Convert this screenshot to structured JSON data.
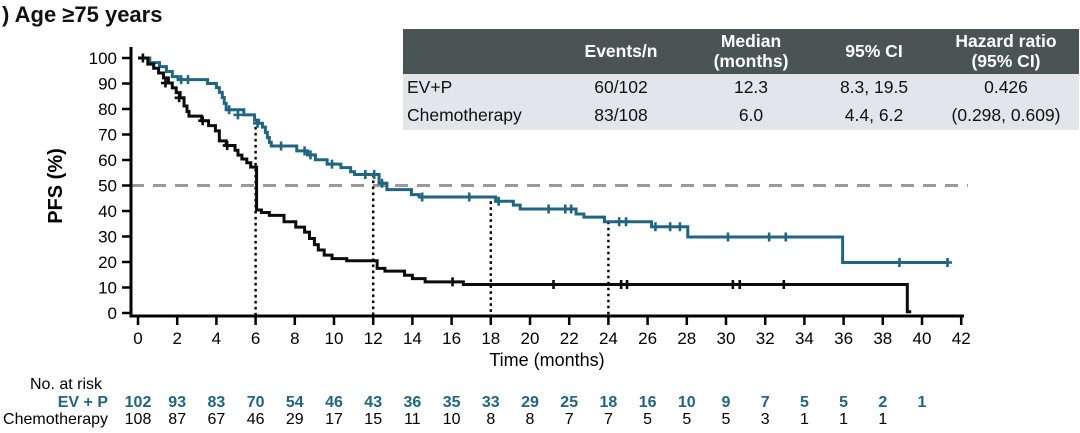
{
  "title": ") Age ≥75 years",
  "colors": {
    "evp": "#206582",
    "chemo": "#0b0b0b",
    "median_line": "#9a9a9a",
    "table_header_bg": "#4b5454",
    "table_row_bg": "#e3e5eb",
    "table_header_text": "#ffffff"
  },
  "summary_table": {
    "headers": [
      "",
      "Events/n",
      "Median\n(months)",
      "95% CI",
      "Hazard ratio\n(95% CI)"
    ],
    "rows": [
      {
        "label": "EV+P",
        "events_n": "60/102",
        "median": "12.3",
        "ci": "8.3, 19.5",
        "hr": "0.426"
      },
      {
        "label": "Chemotherapy",
        "events_n": "83/108",
        "median": "6.0",
        "ci": "4.4, 6.2",
        "hr": "(0.298, 0.609)"
      }
    ]
  },
  "chart_data": {
    "type": "line",
    "subtype": "kaplan-meier-step",
    "title": "",
    "xlabel": "Time (months)",
    "ylabel": "PFS (%)",
    "xlim": [
      0,
      42
    ],
    "ylim": [
      0,
      100
    ],
    "x_ticks": [
      0,
      2,
      4,
      6,
      8,
      10,
      12,
      14,
      16,
      18,
      20,
      22,
      24,
      26,
      28,
      30,
      32,
      34,
      36,
      38,
      40,
      42
    ],
    "y_ticks": [
      0,
      10,
      20,
      30,
      40,
      50,
      60,
      70,
      80,
      90,
      100
    ],
    "grid": false,
    "legend_position": "none",
    "reference_line_y": 50,
    "dotted_verticals": [
      {
        "x": 6,
        "top": 73
      },
      {
        "x": 12,
        "top": 54.3
      },
      {
        "x": 18,
        "top": 43.8
      },
      {
        "x": 24,
        "top": 35.8
      }
    ],
    "series": [
      {
        "name": "EV+P",
        "key": "evp",
        "end": 41.3,
        "steps": [
          [
            0,
            100
          ],
          [
            0.6,
            98.2
          ],
          [
            1.1,
            96.6
          ],
          [
            1.45,
            94.7
          ],
          [
            1.75,
            92.7
          ],
          [
            2.05,
            91.5
          ],
          [
            3.55,
            90.0
          ],
          [
            4.0,
            88.4
          ],
          [
            4.15,
            86.5
          ],
          [
            4.3,
            84.5
          ],
          [
            4.4,
            82.2
          ],
          [
            4.5,
            79.7
          ],
          [
            5.4,
            77.7
          ],
          [
            5.95,
            75.6
          ],
          [
            6.15,
            74.4
          ],
          [
            6.35,
            72.9
          ],
          [
            6.5,
            70.8
          ],
          [
            6.6,
            68.8
          ],
          [
            6.7,
            66.9
          ],
          [
            6.8,
            65.5
          ],
          [
            8.1,
            63.6
          ],
          [
            8.65,
            62.0
          ],
          [
            9.05,
            60.1
          ],
          [
            9.65,
            58.4
          ],
          [
            10.35,
            57.0
          ],
          [
            10.85,
            55.4
          ],
          [
            11.05,
            54.3
          ],
          [
            12.3,
            50.9
          ],
          [
            12.7,
            48.4
          ],
          [
            13.95,
            46.4
          ],
          [
            14.35,
            45.5
          ],
          [
            18.25,
            43.8
          ],
          [
            19.15,
            42.3
          ],
          [
            19.5,
            40.8
          ],
          [
            22.35,
            38.8
          ],
          [
            22.75,
            37.6
          ],
          [
            23.8,
            35.8
          ],
          [
            26.2,
            33.8
          ],
          [
            28.05,
            29.8
          ],
          [
            35.95,
            19.8
          ]
        ],
        "censors": [
          [
            2.2,
            91.5
          ],
          [
            2.55,
            91.5
          ],
          [
            4.65,
            79.7
          ],
          [
            5.1,
            77.7
          ],
          [
            6.1,
            74.4
          ],
          [
            7.3,
            65.5
          ],
          [
            8.5,
            63.6
          ],
          [
            8.8,
            62.0
          ],
          [
            9.9,
            58.4
          ],
          [
            11.6,
            54.3
          ],
          [
            12.05,
            54.3
          ],
          [
            12.45,
            50.9
          ],
          [
            14.5,
            45.5
          ],
          [
            16.9,
            45.5
          ],
          [
            18.4,
            43.8
          ],
          [
            20.95,
            40.8
          ],
          [
            21.8,
            40.8
          ],
          [
            22.1,
            40.8
          ],
          [
            24.55,
            35.8
          ],
          [
            24.9,
            35.8
          ],
          [
            26.4,
            33.8
          ],
          [
            27.15,
            33.8
          ],
          [
            27.65,
            33.8
          ],
          [
            30.1,
            29.8
          ],
          [
            32.2,
            29.8
          ],
          [
            33.05,
            29.8
          ],
          [
            38.85,
            19.8
          ],
          [
            41.3,
            19.8
          ]
        ]
      },
      {
        "name": "Chemotherapy",
        "key": "chemo",
        "end": 39.45,
        "steps": [
          [
            0,
            100
          ],
          [
            0.5,
            97.6
          ],
          [
            0.8,
            96.0
          ],
          [
            1.05,
            94.1
          ],
          [
            1.3,
            92.2
          ],
          [
            1.55,
            90.2
          ],
          [
            1.75,
            88.3
          ],
          [
            1.95,
            86.4
          ],
          [
            2.15,
            84.4
          ],
          [
            2.35,
            81.2
          ],
          [
            2.5,
            79.0
          ],
          [
            2.6,
            77.2
          ],
          [
            3.25,
            75.4
          ],
          [
            3.6,
            73.5
          ],
          [
            3.95,
            71.4
          ],
          [
            4.15,
            67.5
          ],
          [
            4.5,
            65.7
          ],
          [
            4.95,
            63.8
          ],
          [
            5.1,
            61.9
          ],
          [
            5.3,
            60.4
          ],
          [
            5.55,
            58.9
          ],
          [
            5.75,
            57.2
          ],
          [
            6.05,
            40.4
          ],
          [
            6.3,
            39.4
          ],
          [
            6.7,
            38.3
          ],
          [
            7.45,
            35.8
          ],
          [
            8.05,
            33.7
          ],
          [
            8.5,
            31.7
          ],
          [
            8.75,
            29.2
          ],
          [
            9.0,
            26.8
          ],
          [
            9.2,
            24.7
          ],
          [
            9.5,
            22.7
          ],
          [
            9.9,
            21.3
          ],
          [
            10.65,
            20.5
          ],
          [
            12.2,
            17.5
          ],
          [
            12.6,
            16.4
          ],
          [
            13.6,
            14.8
          ],
          [
            14.0,
            13.5
          ],
          [
            14.65,
            12.2
          ],
          [
            16.6,
            11.2
          ],
          [
            39.25,
            0.5
          ]
        ],
        "censors": [
          [
            0.25,
            100
          ],
          [
            1.4,
            90.2
          ],
          [
            2.1,
            84.4
          ],
          [
            3.3,
            75.4
          ],
          [
            4.55,
            65.7
          ],
          [
            16.05,
            12.2
          ],
          [
            21.2,
            11.2
          ],
          [
            24.65,
            11.2
          ],
          [
            24.95,
            11.2
          ],
          [
            30.35,
            11.2
          ],
          [
            30.7,
            11.2
          ],
          [
            32.95,
            11.2
          ]
        ]
      }
    ]
  },
  "at_risk": {
    "label": "No. at risk",
    "interval_months": 2,
    "groups": [
      {
        "name": "EV + P",
        "key": "evp",
        "values": [
          102,
          93,
          83,
          70,
          54,
          46,
          43,
          36,
          35,
          33,
          29,
          25,
          18,
          16,
          10,
          9,
          7,
          5,
          5,
          2,
          1
        ]
      },
      {
        "name": "Chemotherapy",
        "key": "chemo",
        "values": [
          108,
          87,
          67,
          46,
          29,
          17,
          15,
          11,
          10,
          8,
          8,
          7,
          7,
          5,
          5,
          5,
          3,
          1,
          1,
          1
        ]
      }
    ]
  }
}
